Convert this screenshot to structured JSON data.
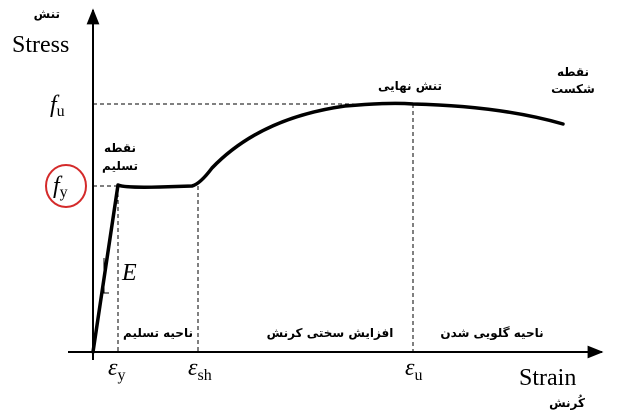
{
  "axes": {
    "y_label_fa": "تنش",
    "y_label": "Stress",
    "x_label": "Strain",
    "x_label_fa": "کُرنش"
  },
  "stress_levels": [
    {
      "symbol": "f",
      "subscript": "u"
    },
    {
      "symbol": "f",
      "subscript": "y"
    }
  ],
  "strain_levels": [
    {
      "symbol": "ε",
      "subscript": "y"
    },
    {
      "symbol": "ε",
      "subscript": "sh"
    },
    {
      "symbol": "ε",
      "subscript": "u"
    }
  ],
  "modulus": "E",
  "annotations": {
    "yield_point": [
      "نقطه",
      "تسلیم"
    ],
    "ultimate_stress": "تنش نهایی",
    "fracture_point": [
      "نقطه",
      "شکست"
    ]
  },
  "regions": [
    "ناحیه تسلیم",
    "افزایش سختی کرنش",
    "ناحیه گلویی شدن"
  ]
}
